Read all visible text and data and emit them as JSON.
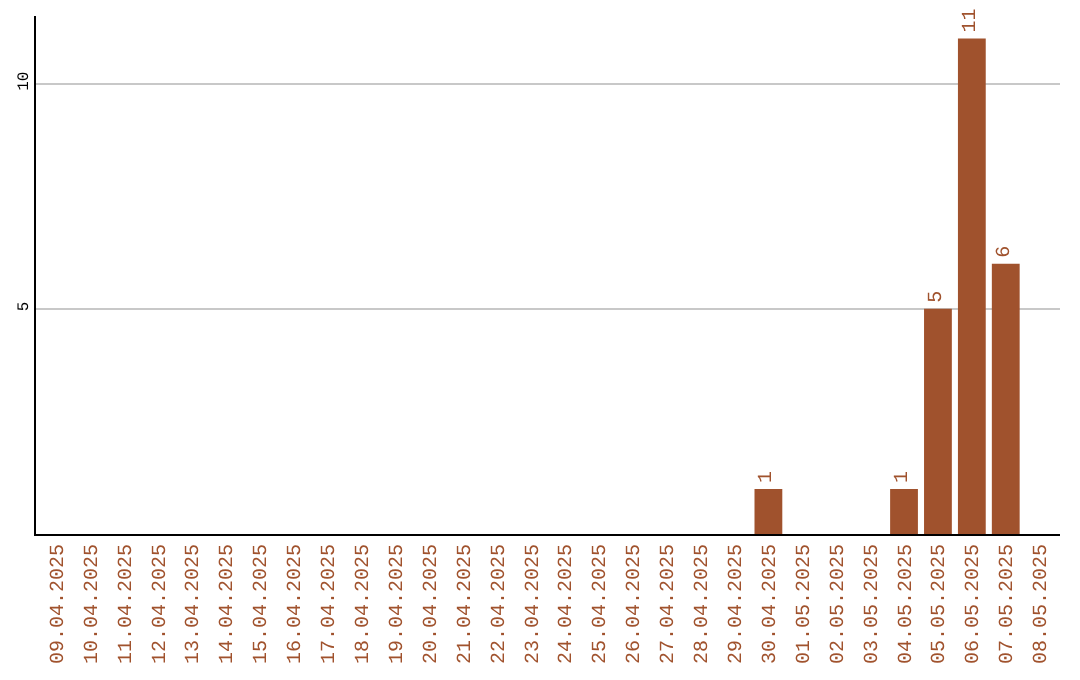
{
  "chart_data": {
    "type": "bar",
    "categories": [
      "09.04.2025",
      "10.04.2025",
      "11.04.2025",
      "12.04.2025",
      "13.04.2025",
      "14.04.2025",
      "15.04.2025",
      "16.04.2025",
      "17.04.2025",
      "18.04.2025",
      "19.04.2025",
      "20.04.2025",
      "21.04.2025",
      "22.04.2025",
      "23.04.2025",
      "24.04.2025",
      "25.04.2025",
      "26.04.2025",
      "27.04.2025",
      "28.04.2025",
      "29.04.2025",
      "30.04.2025",
      "01.05.2025",
      "02.05.2025",
      "03.05.2025",
      "04.05.2025",
      "05.05.2025",
      "06.05.2025",
      "07.05.2025",
      "08.05.2025"
    ],
    "values": [
      0,
      0,
      0,
      0,
      0,
      0,
      0,
      0,
      0,
      0,
      0,
      0,
      0,
      0,
      0,
      0,
      0,
      0,
      0,
      0,
      0,
      1,
      0,
      0,
      0,
      1,
      5,
      11,
      6,
      0
    ],
    "value_labels": [
      null,
      null,
      null,
      null,
      null,
      null,
      null,
      null,
      null,
      null,
      null,
      null,
      null,
      null,
      null,
      null,
      null,
      null,
      null,
      null,
      null,
      "1",
      null,
      null,
      null,
      "1",
      "5",
      "11",
      "6",
      null
    ],
    "color": "#a0522d",
    "ylim": [
      0,
      11.5
    ],
    "yticks": [
      5,
      10
    ],
    "grid": "y"
  }
}
